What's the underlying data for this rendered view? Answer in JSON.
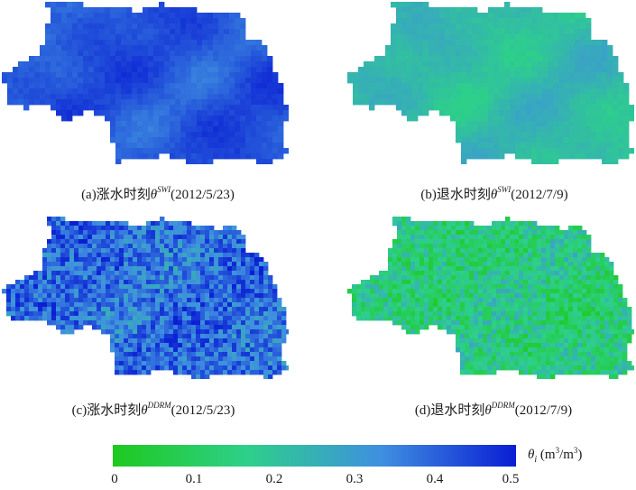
{
  "panels": [
    {
      "id": "a",
      "caption_prefix": "(a)涨水时刻",
      "symbol": "θ",
      "superscript": "SWI",
      "date": "(2012/5/23)",
      "mean_value": 0.42,
      "spread": 0.06,
      "noise": "smooth"
    },
    {
      "id": "b",
      "caption_prefix": "(b)退水时刻",
      "symbol": "θ",
      "superscript": "SWI",
      "date": "(2012/7/9)",
      "mean_value": 0.22,
      "spread": 0.06,
      "noise": "smooth"
    },
    {
      "id": "c",
      "caption_prefix": "(c)涨水时刻",
      "symbol": "θ",
      "superscript": "DDRM",
      "date": "(2012/5/23)",
      "mean_value": 0.38,
      "spread": 0.1,
      "noise": "grainy"
    },
    {
      "id": "d",
      "caption_prefix": "(d)退水时刻",
      "symbol": "θ",
      "superscript": "DDRM",
      "date": "(2012/7/9)",
      "mean_value": 0.15,
      "spread": 0.1,
      "noise": "grainy"
    }
  ],
  "colorbar": {
    "min": 0,
    "max": 0.5,
    "ticks": [
      "0",
      "0.1",
      "0.2",
      "0.3",
      "0.4",
      "0.5"
    ],
    "color_stops": [
      "#1ec91e",
      "#2dd08a",
      "#3f8fe0",
      "#0a1ed4"
    ],
    "unit_symbol": "θ",
    "unit_subscript": "i",
    "unit_text": "(m",
    "unit_sup1": "3",
    "unit_mid": "/m",
    "unit_sup2": "3",
    "unit_close": ")"
  }
}
